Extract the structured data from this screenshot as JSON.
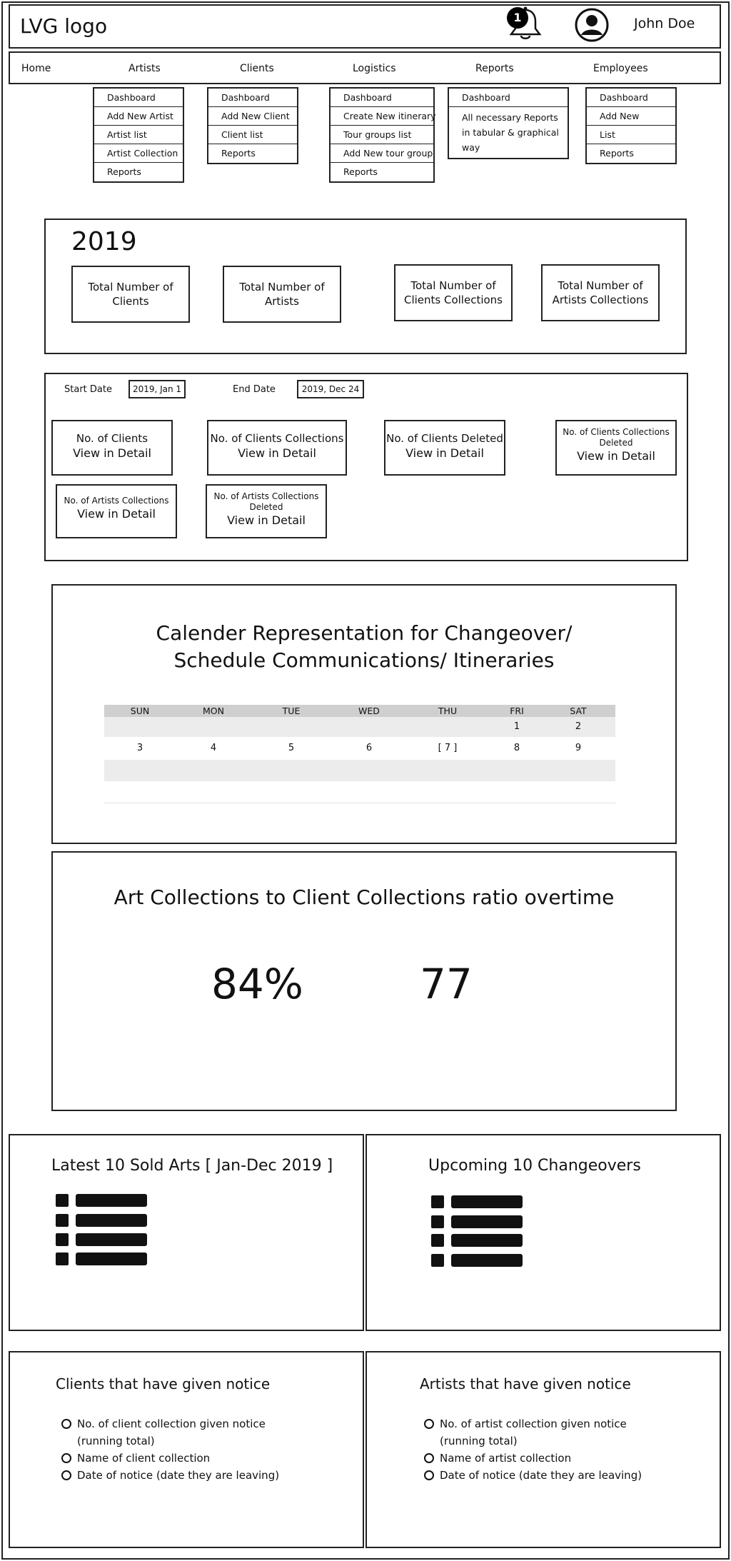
{
  "header": {
    "logo": "LVG logo",
    "notification_count": "1",
    "username": "John Doe"
  },
  "nav": {
    "items": [
      "Home",
      "Artists",
      "Clients",
      "Logistics",
      "Reports",
      "Employees"
    ]
  },
  "dropdowns": {
    "artists": [
      "Dashboard",
      "Add New Artist",
      "Artist list",
      "Artist Collection",
      "Reports"
    ],
    "clients": [
      "Dashboard",
      "Add New Client",
      "Client list",
      "Reports"
    ],
    "logistics": [
      "Dashboard",
      "Create New itinerary",
      "Tour groups list",
      "Add New tour group",
      "Reports"
    ],
    "reports": [
      "Dashboard",
      "All necessary Reports in tabular & graphical way"
    ],
    "employees": [
      "Dashboard",
      "Add New",
      "List",
      "Reports"
    ]
  },
  "summary": {
    "year": "2019",
    "cards": [
      "Total Number of Clients",
      "Total Number of Artists",
      "Total Number of Clients Collections",
      "Total Number of Artists Collections"
    ]
  },
  "filter": {
    "start_label": "Start Date",
    "start_value": "2019, Jan 1",
    "end_label": "End Date",
    "end_value": "2019, Dec 24",
    "view_label": "View in Detail",
    "cards": [
      "No. of Clients",
      "No. of Clients Collections",
      "No. of Clients Deleted",
      "No. of Clients Collections Deleted",
      "No. of Artists Collections",
      "No. of Artists Collections Deleted"
    ]
  },
  "calendar": {
    "title_line1": "Calender Representation for Changeover/",
    "title_line2": "Schedule Communications/ Itineraries",
    "days": [
      "SUN",
      "MON",
      "TUE",
      "WED",
      "THU",
      "FRI",
      "SAT"
    ],
    "week1": [
      "",
      "",
      "",
      "",
      "",
      "1",
      "2"
    ],
    "week2": [
      "3",
      "4",
      "5",
      "6",
      "[ 7 ]",
      "8",
      "9"
    ]
  },
  "ratio": {
    "title": "Art Collections to Client Collections ratio overtime",
    "value1": "84%",
    "value2": "77"
  },
  "panels": {
    "sold_title": "Latest 10 Sold Arts [ Jan-Dec 2019 ]",
    "changeovers_title": "Upcoming 10 Changeovers",
    "clients_notice": {
      "title": "Clients that have given notice",
      "items": [
        "No. of client collection given notice (running total)",
        "Name of client collection",
        "Date of notice (date they are leaving)"
      ]
    },
    "artists_notice": {
      "title": "Artists that have given notice",
      "items": [
        "No. of artist collection given notice (running total)",
        "Name of artist collection",
        "Date of notice (date they are leaving)"
      ]
    }
  },
  "icons": {
    "notification": "bell-icon",
    "user": "user-avatar-icon",
    "list": "list-icon",
    "radio": "radio-icon"
  }
}
